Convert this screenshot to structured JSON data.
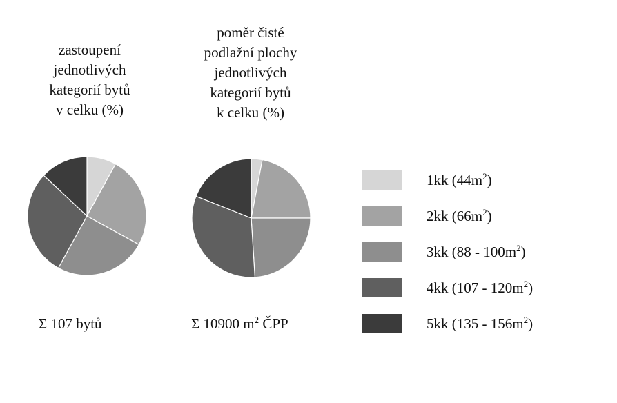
{
  "chart_data": [
    {
      "type": "pie",
      "title": "zastoupení jednotlivých kategorií bytů v celku (%)",
      "title_lines": [
        "zastoupení",
        "jednotlivých",
        "kategorií bytů",
        "v celku (%)"
      ],
      "caption": "Σ 107 bytů",
      "categories": [
        "1kk (44m2)",
        "2kk (66m2)",
        "3kk (88 - 100m2)",
        "4kk (107 - 120m2)",
        "5kk (135 - 156m2)"
      ],
      "values": [
        8,
        25,
        25,
        29,
        13
      ]
    },
    {
      "type": "pie",
      "title": "poměr čisté podlažní plochy jednotlivých kategorií bytů k celku (%)",
      "title_lines": [
        "poměr čisté",
        "podlažní plochy",
        "jednotlivých",
        "kategorií bytů",
        "k celku (%)"
      ],
      "caption_prefix": "Σ 10900 m",
      "caption_sup": "2",
      "caption_suffix": " ČPP",
      "categories": [
        "1kk (44m2)",
        "2kk (66m2)",
        "3kk (88 - 100m2)",
        "4kk (107 - 120m2)",
        "5kk (135 - 156m2)"
      ],
      "values": [
        3,
        22,
        24,
        32,
        19
      ]
    }
  ],
  "legend": {
    "placement": "right",
    "items": [
      {
        "text": "1kk (44m",
        "sup": "2",
        "after": ")",
        "color": "#d6d6d6"
      },
      {
        "text": "2kk (66m",
        "sup": "2",
        "after": ")",
        "color": "#a3a3a3"
      },
      {
        "text": "3kk (88 - 100m",
        "sup": "2",
        "after": ")",
        "color": "#8e8e8e"
      },
      {
        "text": "4kk (107 - 120m",
        "sup": "2",
        "after": ")",
        "color": "#5f5f5f"
      },
      {
        "text": "5kk (135 - 156m",
        "sup": "2",
        "after": ")",
        "color": "#3b3b3b"
      }
    ]
  }
}
